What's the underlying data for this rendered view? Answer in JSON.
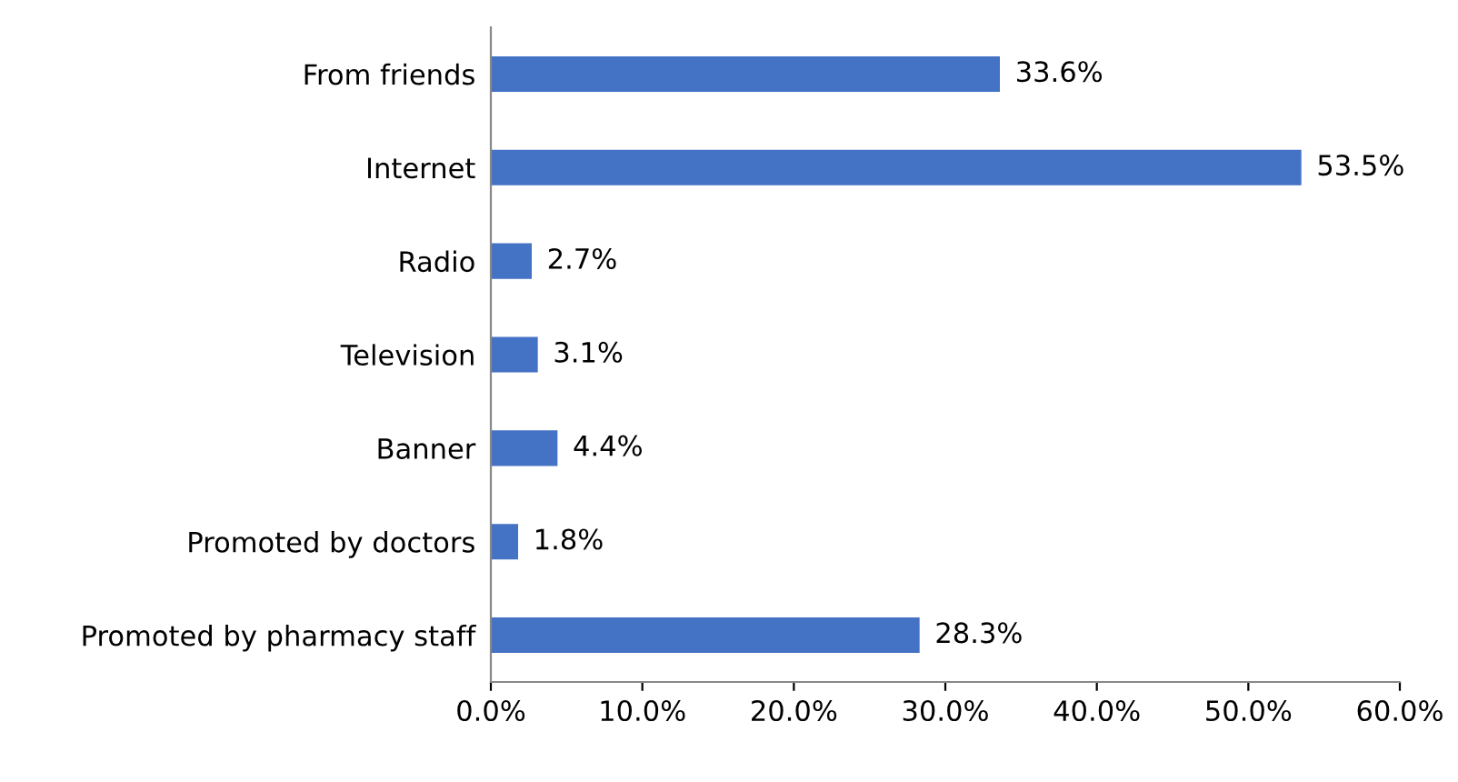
{
  "chart_data": {
    "type": "bar",
    "orientation": "horizontal",
    "categories": [
      "From friends",
      "Internet",
      "Radio",
      "Television",
      "Banner",
      "Promoted by doctors",
      "Promoted by pharmacy staff"
    ],
    "values": [
      33.6,
      53.5,
      2.7,
      3.1,
      4.4,
      1.8,
      28.3
    ],
    "value_labels": [
      "33.6%",
      "53.5%",
      "2.7%",
      "3.1%",
      "4.4%",
      "1.8%",
      "28.3%"
    ],
    "color": "#4472c4",
    "xlim": [
      0,
      60
    ],
    "xticks": [
      {
        "value": 0,
        "label": "0.0%"
      },
      {
        "value": 10,
        "label": "10.0%"
      },
      {
        "value": 20,
        "label": "20.0%"
      },
      {
        "value": 30,
        "label": "30.0%"
      },
      {
        "value": 40,
        "label": "40.0%"
      },
      {
        "value": 50,
        "label": "50.0%"
      },
      {
        "value": 60,
        "label": "60.0%"
      }
    ],
    "grid": false,
    "legend": false
  }
}
